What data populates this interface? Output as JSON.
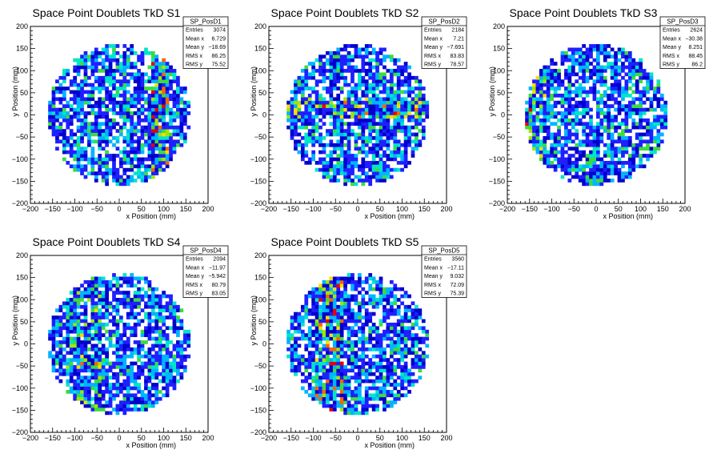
{
  "colors": {
    "palette": [
      "#0000cc",
      "#1f1fff",
      "#00b4ff",
      "#00e6c8",
      "#3cdc3c",
      "#a0e600",
      "#ffdc00",
      "#ff6400",
      "#e60000"
    ],
    "frame": "#000000",
    "background": "#ffffff"
  },
  "chart_data": [
    {
      "type": "heatmap",
      "title": "Space Point Doublets TkD S1",
      "xlabel": "x Position (mm)",
      "ylabel": "y Position (mm)",
      "xlim": [
        -200,
        200
      ],
      "ylim": [
        -200,
        200
      ],
      "x_ticks": [
        "−200",
        "−150",
        "−100",
        "−50",
        "0",
        "50",
        "100",
        "150",
        "200"
      ],
      "y_ticks": [
        "200",
        "150",
        "100",
        "50",
        "0",
        "−50",
        "−100",
        "−150",
        "−200"
      ],
      "occupied_radius": 160,
      "stats": {
        "name": "SP_PosD1",
        "rows": [
          {
            "label": "Entries",
            "value": "3074"
          },
          {
            "label": "Mean x",
            "value": "6.729"
          },
          {
            "label": "Mean y",
            "value": "−18.69"
          },
          {
            "label": "RMS x",
            "value": "86.25"
          },
          {
            "label": "RMS y",
            "value": "75.52"
          }
        ]
      },
      "bands": [
        {
          "axis": "x",
          "center": 95,
          "width": 20,
          "weight": 0.45
        }
      ]
    },
    {
      "type": "heatmap",
      "title": "Space Point Doublets TkD S2",
      "xlabel": "x Position (mm)",
      "ylabel": "y Position (mm)",
      "xlim": [
        -200,
        200
      ],
      "ylim": [
        -200,
        200
      ],
      "x_ticks": [
        "−200",
        "−150",
        "−100",
        "−50",
        "0",
        "50",
        "100",
        "150",
        "200"
      ],
      "y_ticks": [
        "200",
        "150",
        "100",
        "50",
        "0",
        "−50",
        "−100",
        "−150",
        "−200"
      ],
      "occupied_radius": 160,
      "stats": {
        "name": "SP_PosD2",
        "rows": [
          {
            "label": "Entries",
            "value": "2184"
          },
          {
            "label": "Mean x",
            "value": "7.21"
          },
          {
            "label": "Mean y",
            "value": "−7.691"
          },
          {
            "label": "RMS x",
            "value": "83.83"
          },
          {
            "label": "RMS y",
            "value": "78.57"
          }
        ]
      },
      "bands": [
        {
          "axis": "y",
          "center": 15,
          "width": 25,
          "weight": 0.4
        }
      ]
    },
    {
      "type": "heatmap",
      "title": "Space Point Doublets TkD S3",
      "xlabel": "x Position (mm)",
      "ylabel": "y Position (mm)",
      "xlim": [
        -200,
        200
      ],
      "ylim": [
        -200,
        200
      ],
      "x_ticks": [
        "−200",
        "−150",
        "−100",
        "−50",
        "0",
        "50",
        "100",
        "150",
        "200"
      ],
      "y_ticks": [
        "200",
        "150",
        "100",
        "50",
        "0",
        "−50",
        "−100",
        "−150",
        "−200"
      ],
      "occupied_radius": 160,
      "stats": {
        "name": "SP_PosD3",
        "rows": [
          {
            "label": "Entries",
            "value": "2624"
          },
          {
            "label": "Mean x",
            "value": "−30.38"
          },
          {
            "label": "Mean y",
            "value": "8.251"
          },
          {
            "label": "RMS x",
            "value": "88.45"
          },
          {
            "label": "RMS y",
            "value": "86.2"
          }
        ]
      },
      "bands": [
        {
          "axis": "x",
          "center": -140,
          "width": 25,
          "weight": 0.45
        }
      ]
    },
    {
      "type": "heatmap",
      "title": "Space Point Doublets TkD S4",
      "xlabel": "x Position (mm)",
      "ylabel": "y Position (mm)",
      "xlim": [
        -200,
        200
      ],
      "ylim": [
        -200,
        200
      ],
      "x_ticks": [
        "−200",
        "−150",
        "−100",
        "−50",
        "0",
        "50",
        "100",
        "150",
        "200"
      ],
      "y_ticks": [
        "200",
        "150",
        "100",
        "50",
        "0",
        "−50",
        "−100",
        "−150",
        "−200"
      ],
      "occupied_radius": 160,
      "stats": {
        "name": "SP_PosD4",
        "rows": [
          {
            "label": "Entries",
            "value": "2094"
          },
          {
            "label": "Mean x",
            "value": "−11.97"
          },
          {
            "label": "Mean y",
            "value": "−5.942"
          },
          {
            "label": "RMS x",
            "value": "80.79"
          },
          {
            "label": "RMS y",
            "value": "83.05"
          }
        ]
      },
      "bands": [
        {
          "axis": "x",
          "center": -80,
          "width": 40,
          "weight": 0.3
        }
      ]
    },
    {
      "type": "heatmap",
      "title": "Space Point Doublets TkD S5",
      "xlabel": "x Position (mm)",
      "ylabel": "y Position (mm)",
      "xlim": [
        -200,
        200
      ],
      "ylim": [
        -200,
        200
      ],
      "x_ticks": [
        "−200",
        "−150",
        "−100",
        "−50",
        "0",
        "50",
        "100",
        "150",
        "200"
      ],
      "y_ticks": [
        "200",
        "150",
        "100",
        "50",
        "0",
        "−50",
        "−100",
        "−150",
        "−200"
      ],
      "occupied_radius": 160,
      "stats": {
        "name": "SP_PosD5",
        "rows": [
          {
            "label": "Entries",
            "value": "3560"
          },
          {
            "label": "Mean x",
            "value": "−17.11"
          },
          {
            "label": "Mean y",
            "value": "9.032"
          },
          {
            "label": "RMS x",
            "value": "72.09"
          },
          {
            "label": "RMS y",
            "value": "75.39"
          }
        ]
      },
      "bands": [
        {
          "axis": "x",
          "center": -65,
          "width": 35,
          "weight": 0.55
        }
      ]
    }
  ]
}
